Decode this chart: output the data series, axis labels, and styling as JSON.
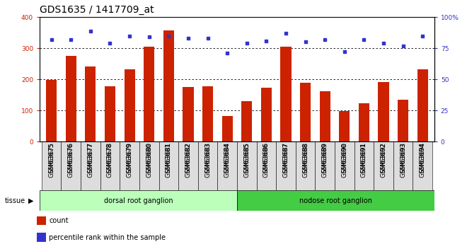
{
  "title": "GDS1635 / 1417709_at",
  "categories": [
    "GSM63675",
    "GSM63676",
    "GSM63677",
    "GSM63678",
    "GSM63679",
    "GSM63680",
    "GSM63681",
    "GSM63682",
    "GSM63683",
    "GSM63684",
    "GSM63685",
    "GSM63686",
    "GSM63687",
    "GSM63688",
    "GSM63689",
    "GSM63690",
    "GSM63691",
    "GSM63692",
    "GSM63693",
    "GSM63694"
  ],
  "bar_values": [
    197,
    275,
    242,
    178,
    232,
    305,
    358,
    175,
    178,
    82,
    130,
    172,
    305,
    188,
    162,
    98,
    124,
    192,
    135,
    232
  ],
  "dot_values": [
    82,
    82,
    89,
    79,
    85,
    84,
    85,
    83,
    83,
    71,
    79,
    81,
    87,
    80,
    82,
    72,
    82,
    79,
    77,
    85
  ],
  "bar_color": "#cc2200",
  "dot_color": "#3333cc",
  "ylim_left": [
    0,
    400
  ],
  "ylim_right": [
    0,
    100
  ],
  "yticks_left": [
    0,
    100,
    200,
    300,
    400
  ],
  "yticks_right": [
    0,
    25,
    50,
    75,
    100
  ],
  "yticklabels_right": [
    "0",
    "25",
    "50",
    "75",
    "100%"
  ],
  "grid_lines": [
    100,
    200,
    300
  ],
  "tissue_groups": [
    {
      "label": "dorsal root ganglion",
      "start": 0,
      "end": 10,
      "color": "#bbffbb"
    },
    {
      "label": "nodose root ganglion",
      "start": 10,
      "end": 20,
      "color": "#44cc44"
    }
  ],
  "tissue_label": "tissue",
  "legend_items": [
    {
      "label": "count",
      "color": "#cc2200"
    },
    {
      "label": "percentile rank within the sample",
      "color": "#3333cc"
    }
  ],
  "background_color": "#ffffff",
  "title_fontsize": 10,
  "tick_fontsize": 6.5,
  "axis_color_left": "#cc2200",
  "axis_color_right": "#3333cc"
}
